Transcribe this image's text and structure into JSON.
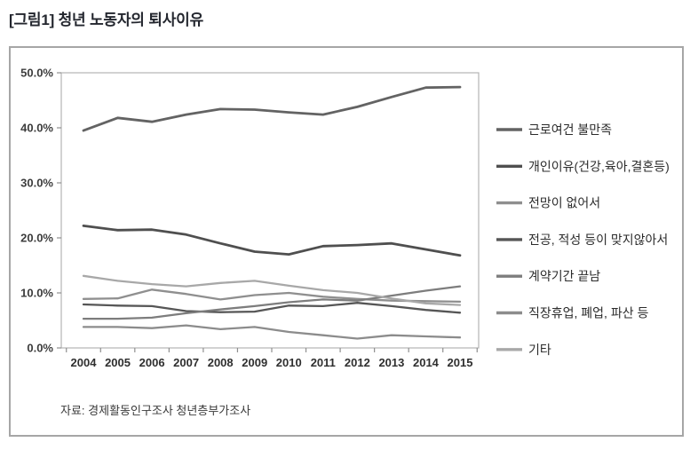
{
  "page": {
    "title": "[그림1] 청년 노동자의 퇴사이유"
  },
  "source": "자료: 경제활동인구조사 청년층부가조사",
  "chart_data": {
    "type": "line",
    "title": "[그림1] 청년 노동자의 퇴사이유",
    "xlabel": "",
    "ylabel": "",
    "ylim": [
      0,
      50
    ],
    "y_ticks": [
      0,
      10,
      20,
      30,
      40,
      50
    ],
    "y_tick_labels": [
      "0.0%",
      "10.0%",
      "20.0%",
      "30.0%",
      "40.0%",
      "50.0%"
    ],
    "grid": false,
    "legend_position": "right",
    "categories": [
      "2004",
      "2005",
      "2006",
      "2007",
      "2008",
      "2009",
      "2010",
      "2011",
      "2012",
      "2013",
      "2014",
      "2015"
    ],
    "series": [
      {
        "name": "근로여건 불만족",
        "color": "#636363",
        "stroke_width": 2.8,
        "values": [
          39.5,
          41.8,
          41.1,
          42.4,
          43.4,
          43.3,
          42.8,
          42.4,
          43.8,
          45.6,
          47.3,
          47.4
        ]
      },
      {
        "name": "개인이유(건강,육아,결혼등)",
        "color": "#4f4f4f",
        "stroke_width": 2.8,
        "values": [
          22.2,
          21.4,
          21.5,
          20.6,
          19.0,
          17.5,
          17.0,
          18.5,
          18.7,
          19.0,
          17.9,
          16.8
        ]
      },
      {
        "name": "전망이 없어서",
        "color": "#8f8f8f",
        "stroke_width": 2.3,
        "values": [
          8.9,
          9.0,
          10.6,
          9.8,
          8.8,
          9.6,
          10.0,
          9.3,
          8.9,
          8.6,
          8.5,
          8.4
        ]
      },
      {
        "name": "전공, 적성 등이 맞지않아서",
        "color": "#565656",
        "stroke_width": 2.3,
        "values": [
          7.9,
          7.7,
          7.6,
          6.7,
          6.5,
          6.6,
          7.7,
          7.6,
          8.2,
          7.6,
          6.9,
          6.4
        ]
      },
      {
        "name": "계약기간 끝남",
        "color": "#7d7d7d",
        "stroke_width": 2.3,
        "values": [
          5.3,
          5.3,
          5.5,
          6.3,
          7.0,
          7.6,
          8.3,
          8.8,
          8.6,
          9.5,
          10.4,
          11.2
        ]
      },
      {
        "name": "직장휴업, 폐업, 파산 등",
        "color": "#8c8c8c",
        "stroke_width": 2.3,
        "values": [
          3.8,
          3.8,
          3.6,
          4.1,
          3.4,
          3.8,
          2.9,
          2.3,
          1.7,
          2.3,
          2.1,
          1.9
        ]
      },
      {
        "name": "기타",
        "color": "#a8a8a8",
        "stroke_width": 2.3,
        "values": [
          13.1,
          12.2,
          11.6,
          11.2,
          11.8,
          12.2,
          11.3,
          10.5,
          10.0,
          9.0,
          8.1,
          7.8
        ]
      }
    ]
  }
}
